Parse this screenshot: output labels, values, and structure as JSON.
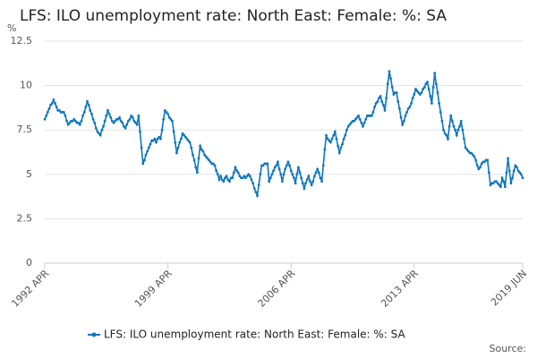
{
  "chart_data": {
    "type": "line",
    "title": "LFS: ILO unemployment rate: North East: Female: %: SA",
    "y_label": "%",
    "source": "Source:",
    "ylim": [
      0,
      12.5
    ],
    "yticks": [
      0,
      2.5,
      5,
      7.5,
      10,
      12.5
    ],
    "grid": true,
    "legend": "bottom",
    "categories": [
      "1992 APR",
      null,
      null,
      null,
      null,
      null,
      null,
      null,
      null,
      null,
      null,
      null,
      null,
      null,
      null,
      null,
      null,
      null,
      null,
      null,
      null,
      null,
      null,
      null,
      null,
      null,
      null,
      null,
      null,
      null,
      null,
      null,
      null,
      null,
      null,
      null,
      null,
      null,
      null,
      null,
      null,
      null,
      null,
      null,
      null,
      null,
      null,
      null,
      null,
      null,
      null,
      null,
      null,
      null,
      null,
      null,
      null,
      null,
      null,
      null,
      null,
      null,
      null,
      null,
      null,
      null,
      null,
      null,
      null,
      null,
      null,
      null,
      null,
      null,
      null,
      null,
      null,
      null,
      null,
      null,
      null,
      null,
      null,
      null,
      "1999 APR",
      null,
      null,
      null,
      null,
      null,
      null,
      null,
      null,
      null,
      null,
      null,
      null,
      null,
      null,
      null,
      null,
      null,
      null,
      null,
      null,
      null,
      null,
      null,
      null,
      null,
      null,
      null,
      null,
      null,
      null,
      null,
      null,
      null,
      null,
      null,
      null,
      null,
      null,
      null,
      null,
      null,
      null,
      null,
      null,
      null,
      null,
      null,
      null,
      null,
      null,
      null,
      null,
      null,
      null,
      null,
      null,
      null,
      null,
      null,
      null,
      null,
      null,
      null,
      null,
      null,
      null,
      null,
      null,
      null,
      null,
      null,
      null,
      null,
      null,
      null,
      null,
      null,
      null,
      null,
      null,
      null,
      null,
      null,
      "2006 APR",
      null,
      null,
      null,
      null,
      null,
      null,
      null,
      null,
      null,
      null,
      null,
      null,
      null,
      null,
      null,
      null,
      null,
      null,
      null,
      null,
      null,
      null,
      null,
      null,
      null,
      null,
      null,
      null,
      null,
      null,
      null,
      null,
      null,
      null,
      null,
      null,
      null,
      null,
      null,
      null,
      null,
      null,
      null,
      null,
      null,
      null,
      null,
      null,
      null,
      null,
      null,
      null,
      null,
      null,
      null,
      null,
      null,
      null,
      null,
      null,
      null,
      null,
      null,
      null,
      null,
      null,
      null,
      null,
      null,
      null,
      null,
      null,
      null,
      null,
      null,
      null,
      null,
      null,
      null,
      null,
      null,
      null,
      null,
      "2013 APR",
      null,
      null,
      null,
      null,
      null,
      null,
      null,
      null,
      null,
      null,
      null,
      null,
      null,
      null,
      null,
      null,
      null,
      null,
      null,
      null,
      null,
      null,
      null,
      null,
      null,
      null,
      null,
      null,
      null,
      null,
      null,
      null,
      null,
      null,
      null,
      null,
      null,
      null,
      null,
      null,
      null,
      null,
      null,
      null,
      null,
      null,
      null,
      null,
      null,
      null,
      null,
      null,
      null,
      null,
      null,
      null,
      null,
      null,
      null,
      null,
      null,
      null,
      null,
      null,
      null,
      null,
      null,
      null,
      null,
      null,
      null,
      null,
      null,
      "2019 JUN"
    ],
    "series": [
      {
        "name": "LFS: ILO unemployment rate: North East: Female: %: SA",
        "color": "#0e76bc",
        "values": [
          8.1,
          8.3,
          8.5,
          8.7,
          8.9,
          9.0,
          9.2,
          9.0,
          8.8,
          8.6,
          8.6,
          8.5,
          8.5,
          8.5,
          8.3,
          8.0,
          7.8,
          7.9,
          8.0,
          8.0,
          8.1,
          8.0,
          7.9,
          7.9,
          7.8,
          8.0,
          8.3,
          8.5,
          8.8,
          9.1,
          8.9,
          8.6,
          8.4,
          8.1,
          7.9,
          7.6,
          7.4,
          7.3,
          7.2,
          7.5,
          7.7,
          8.0,
          8.3,
          8.6,
          8.4,
          8.2,
          8.0,
          7.9,
          8.0,
          8.1,
          8.1,
          8.2,
          8.0,
          7.9,
          7.7,
          7.6,
          7.8,
          8.0,
          8.1,
          8.3,
          8.2,
          8.0,
          7.9,
          7.8,
          8.3,
          7.4,
          6.5,
          5.6,
          5.8,
          6.1,
          6.3,
          6.5,
          6.7,
          6.9,
          6.9,
          7.0,
          6.8,
          7.0,
          7.1,
          7.0,
          7.5,
          8.1,
          8.6,
          8.5,
          8.4,
          8.2,
          8.1,
          8.0,
          7.4,
          6.8,
          6.2,
          6.5,
          6.8,
          7.0,
          7.3,
          7.2,
          7.1,
          7.0,
          6.9,
          6.8,
          6.5,
          6.1,
          5.8,
          5.4,
          5.1,
          5.9,
          6.6,
          6.4,
          6.3,
          6.1,
          6.0,
          5.9,
          5.8,
          5.7,
          5.6,
          5.6,
          5.5,
          5.2,
          5.0,
          4.7,
          4.9,
          4.7,
          4.6,
          4.8,
          4.9,
          4.7,
          4.6,
          4.8,
          4.8,
          5.1,
          5.4,
          5.2,
          5.1,
          4.9,
          4.8,
          4.8,
          4.9,
          4.8,
          4.9,
          5.0,
          4.9,
          4.7,
          4.5,
          4.2,
          4.0,
          3.8,
          4.4,
          5.0,
          5.5,
          5.5,
          5.6,
          5.6,
          5.6,
          4.6,
          4.8,
          5.0,
          5.2,
          5.4,
          5.5,
          5.7,
          5.3,
          5.0,
          4.6,
          5.0,
          5.3,
          5.5,
          5.7,
          5.5,
          5.2,
          5.0,
          4.8,
          4.5,
          5.0,
          5.4,
          5.1,
          4.8,
          4.5,
          4.2,
          4.5,
          4.7,
          4.9,
          4.6,
          4.4,
          4.6,
          4.9,
          5.1,
          5.3,
          5.1,
          4.8,
          4.6,
          5.5,
          6.4,
          7.2,
          7.0,
          6.9,
          6.8,
          7.0,
          7.2,
          7.4,
          7.0,
          6.6,
          6.2,
          6.5,
          6.7,
          7.0,
          7.2,
          7.5,
          7.7,
          7.8,
          7.9,
          8.0,
          8.0,
          8.1,
          8.2,
          8.3,
          8.1,
          7.9,
          7.7,
          7.9,
          8.1,
          8.3,
          8.3,
          8.3,
          8.3,
          8.5,
          8.8,
          9.0,
          9.1,
          9.3,
          9.4,
          9.1,
          8.9,
          8.6,
          9.3,
          10.1,
          10.8,
          10.4,
          9.9,
          9.5,
          9.6,
          9.6,
          9.1,
          8.7,
          8.2,
          7.8,
          8.0,
          8.3,
          8.5,
          8.7,
          8.8,
          9.0,
          9.3,
          9.5,
          9.8,
          9.7,
          9.6,
          9.5,
          9.6,
          9.8,
          9.9,
          10.1,
          10.2,
          9.8,
          9.4,
          9.0,
          9.9,
          10.7,
          10.1,
          9.6,
          9.0,
          8.5,
          8.0,
          7.5,
          7.3,
          7.2,
          7.0,
          7.7,
          8.3,
          8.0,
          7.7,
          7.5,
          7.2,
          7.5,
          7.7,
          8.0,
          7.5,
          7.0,
          6.5,
          6.4,
          6.3,
          6.2,
          6.2,
          6.1,
          6.0,
          5.8,
          5.5,
          5.3,
          5.4,
          5.6,
          5.7,
          5.7,
          5.8,
          5.8,
          5.1,
          4.4,
          4.5,
          4.5,
          4.6,
          4.6,
          4.5,
          4.4,
          4.3,
          4.8,
          4.6,
          4.3,
          5.1,
          5.9,
          5.2,
          4.5,
          4.8,
          5.2,
          5.5,
          5.4,
          5.2,
          5.1,
          5.0,
          4.8
        ]
      }
    ]
  }
}
